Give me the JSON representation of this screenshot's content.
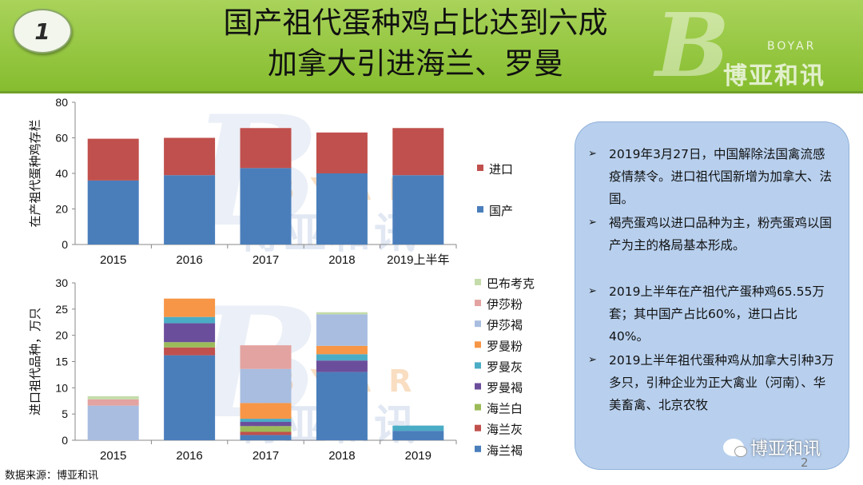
{
  "header": {
    "badge": "1",
    "title_line1": "国产祖代蛋种鸡占比达到六成",
    "title_line2": "加拿大引进海兰、罗曼",
    "logo_letter": "B",
    "logo_text": "博亚和讯",
    "logo_small": "BOYAR"
  },
  "watermark": {
    "letter": "B",
    "byar": "BYAR",
    "cn": "博亚和讯"
  },
  "chart_data": [
    {
      "type": "bar",
      "stacked": true,
      "ylabel": "在产祖代蛋种鸡存栏",
      "ylim": [
        0,
        80
      ],
      "yticks": [
        0,
        20,
        40,
        60,
        80
      ],
      "categories": [
        "2015",
        "2016",
        "2017",
        "2018",
        "2019上半年"
      ],
      "series": [
        {
          "name": "国产",
          "color": "#4a7ebb",
          "values": [
            36,
            39,
            43,
            40,
            39
          ]
        },
        {
          "name": "进口",
          "color": "#c0504d",
          "values": [
            23.5,
            21,
            22.5,
            23,
            26.5
          ]
        }
      ],
      "legend_order": [
        "进口",
        "国产"
      ],
      "legend": "right"
    },
    {
      "type": "bar",
      "stacked": true,
      "ylabel": "进口祖代品种，万只",
      "ylim": [
        0,
        30
      ],
      "yticks": [
        0,
        5,
        10,
        15,
        20,
        25,
        30
      ],
      "categories": [
        "2015",
        "2016",
        "2017",
        "2018",
        "2019"
      ],
      "series": [
        {
          "name": "海兰褐",
          "color": "#4a7ebb",
          "values": [
            0,
            16.2,
            1.0,
            13.0,
            1.8
          ]
        },
        {
          "name": "海兰灰",
          "color": "#c0504d",
          "values": [
            0,
            1.5,
            0.6,
            0,
            0
          ]
        },
        {
          "name": "海兰白",
          "color": "#9bbb59",
          "values": [
            0,
            1.0,
            1.1,
            0,
            0
          ]
        },
        {
          "name": "罗曼褐",
          "color": "#6b4e9b",
          "values": [
            0,
            3.6,
            0.8,
            2.2,
            0
          ]
        },
        {
          "name": "罗曼灰",
          "color": "#4bacc6",
          "values": [
            0,
            1.2,
            0.6,
            1.2,
            1.0
          ]
        },
        {
          "name": "罗曼粉",
          "color": "#f79646",
          "values": [
            0,
            3.5,
            3.0,
            1.6,
            0
          ]
        },
        {
          "name": "伊莎褐",
          "color": "#a8bde0",
          "values": [
            6.6,
            0,
            6.5,
            6.0,
            0
          ]
        },
        {
          "name": "伊莎粉",
          "color": "#e3a3a1",
          "values": [
            1.2,
            0,
            4.5,
            0,
            0
          ]
        },
        {
          "name": "巴布考克",
          "color": "#c4dcaa",
          "values": [
            0.6,
            0,
            0,
            0.4,
            0
          ]
        }
      ],
      "legend_order": [
        "巴布考克",
        "伊莎粉",
        "伊莎褐",
        "罗曼粉",
        "罗曼灰",
        "罗曼褐",
        "海兰白",
        "海兰灰",
        "海兰褐"
      ],
      "legend": "right"
    }
  ],
  "panel": {
    "bullets": [
      "2019年3月27日，中国解除法国禽流感疫情禁令。进口祖代国新增为加拿大、法国。",
      "褐壳蛋鸡以进口品种为主，粉壳蛋鸡以国产为主的格局基本形成。",
      "2019上半年在产祖代产蛋种鸡65.55万套；其中国产占比60%，进口占比40%。",
      "2019上半年祖代蛋种鸡从加拿大引种3万多只，引种企业为正大禽业（河南）、华美畜禽、北京农牧"
    ],
    "arrow": "➢"
  },
  "footer": {
    "source": "数据来源：博亚和讯",
    "page": "2",
    "wechat": "博亚和讯"
  }
}
